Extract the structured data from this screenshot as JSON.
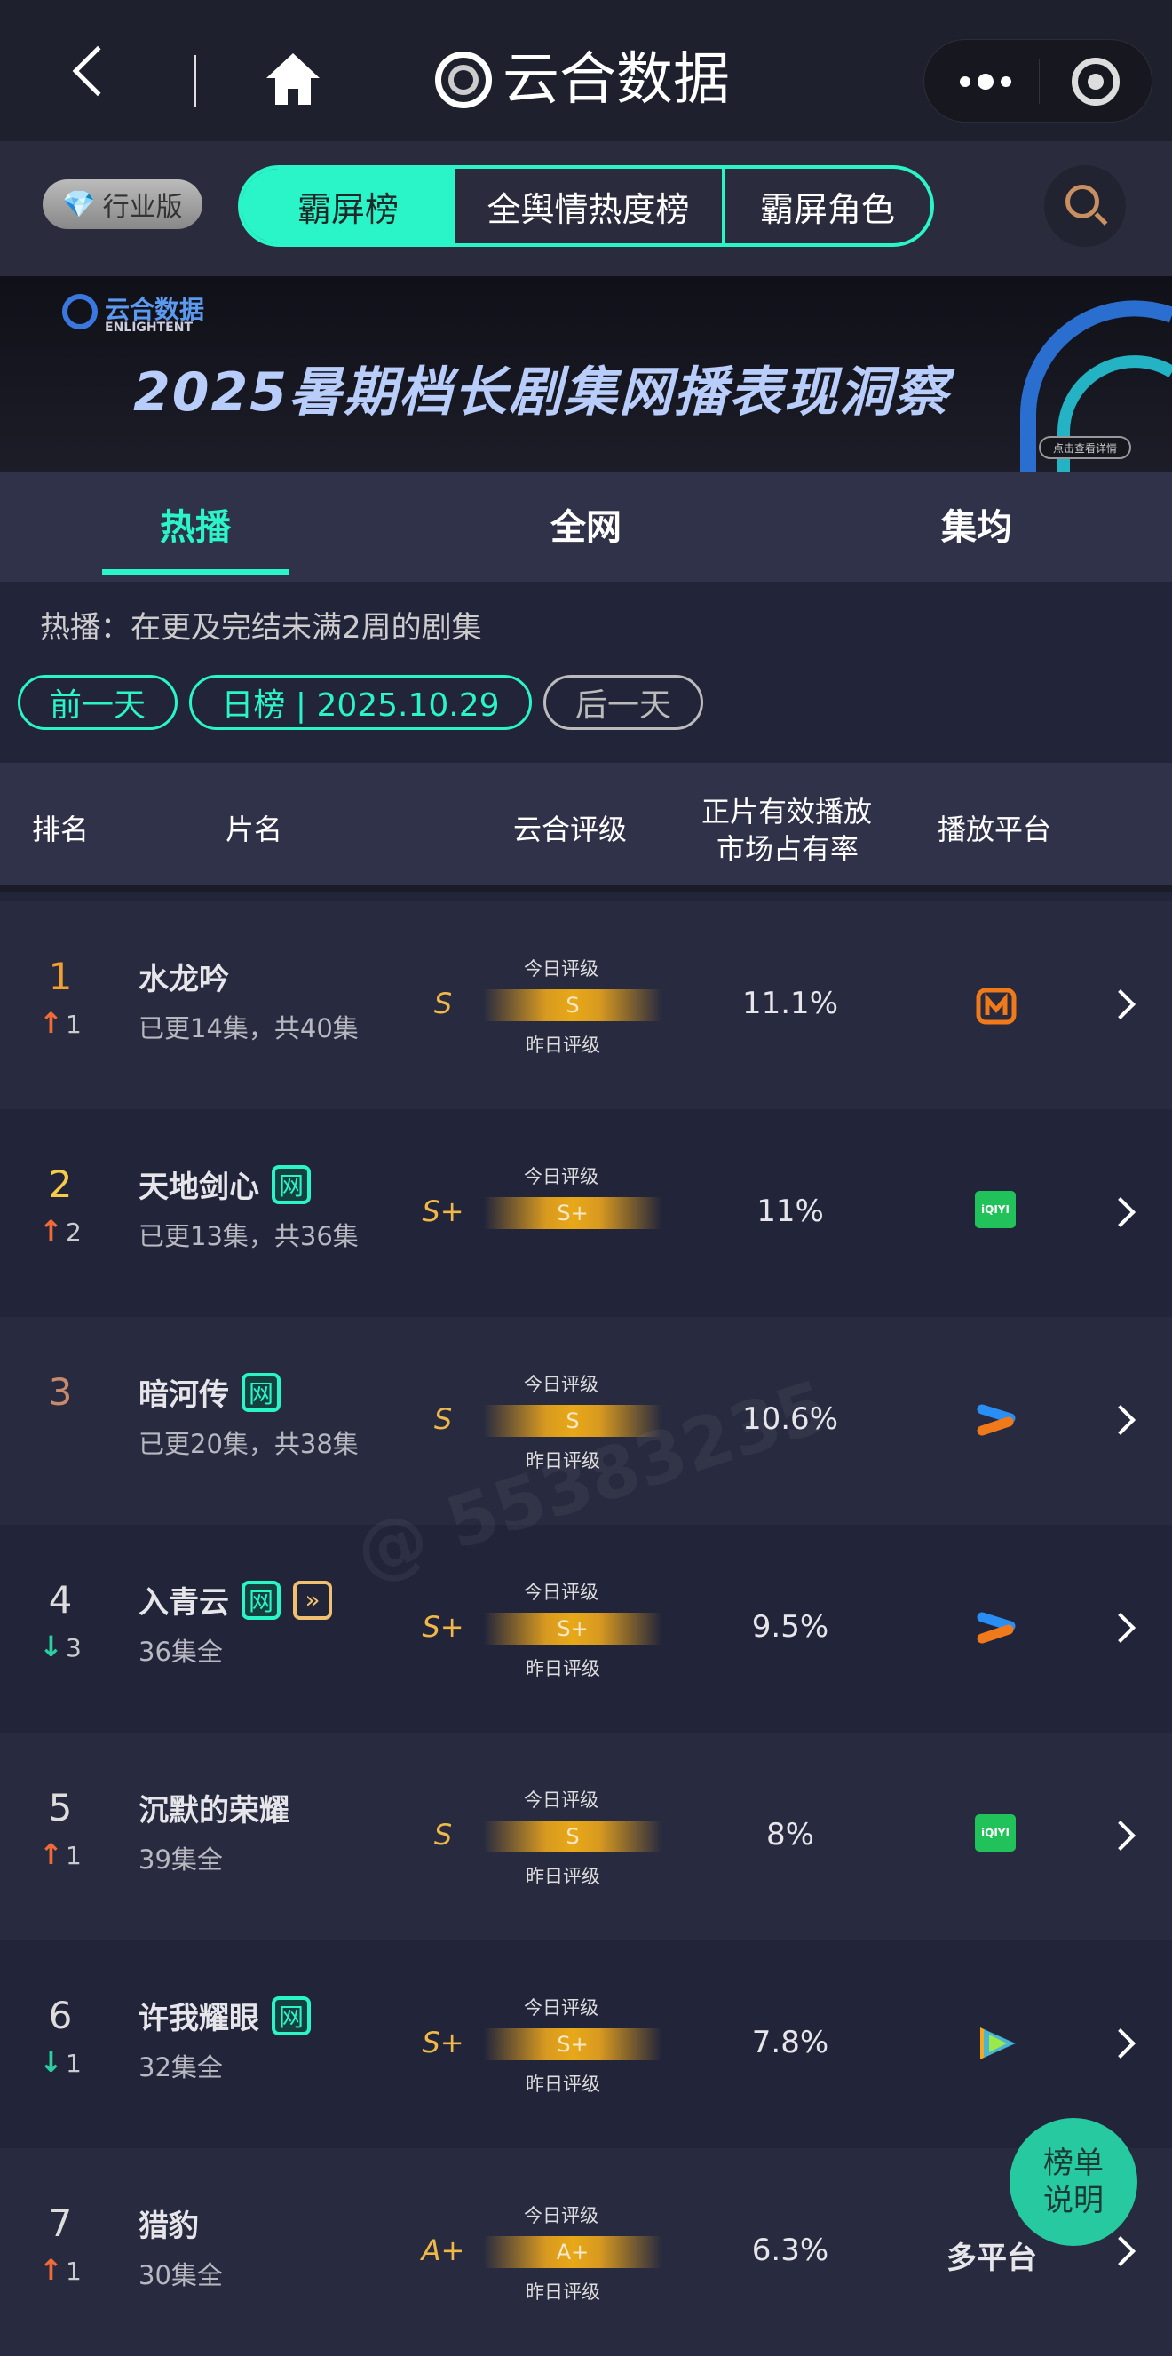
{
  "nav": {
    "brand": "云合数据",
    "back_icon": "chevron-left-icon",
    "home_icon": "home-icon",
    "more_icon": "more-dots-icon",
    "target_icon": "record-icon"
  },
  "tabbar": {
    "edition": "行业版",
    "tabs": [
      "霸屏榜",
      "全舆情热度榜",
      "霸屏角色"
    ],
    "active_tab": 0,
    "accent": "#2af5c8"
  },
  "banner": {
    "logo_cn": "云合数据",
    "logo_en": "ENLIGHTENT",
    "title": "2025暑期档长剧集网播表现洞察",
    "cta": "点击查看详情"
  },
  "subtabs": {
    "items": [
      "热播",
      "全网",
      "集均"
    ],
    "active": 0
  },
  "info": {
    "desc": "热播：在更及完结未满2周的剧集",
    "prev": "前一天",
    "current": "日榜 | 2025.10.29",
    "next": "后一天"
  },
  "header": {
    "rank": "排名",
    "name": "片名",
    "rating": "云合评级",
    "share_line1": "正片有效播放",
    "share_line2": "市场占有率",
    "platform": "播放平台"
  },
  "rating_labels": {
    "today": "今日评级",
    "yesterday": "昨日评级"
  },
  "rows": [
    {
      "rank": "1",
      "change_dir": "up",
      "change": "1",
      "title": "水龙吟",
      "badges": [],
      "sub": "已更14集，共40集",
      "rating": "S",
      "today": "S",
      "show_yesterday": true,
      "share": "11.1%",
      "platform": "mgtv"
    },
    {
      "rank": "2",
      "change_dir": "up",
      "change": "2",
      "title": "天地剑心",
      "badges": [
        "网"
      ],
      "sub": "已更13集，共36集",
      "rating": "S+",
      "today": "S+",
      "show_yesterday": false,
      "share": "11%",
      "platform": "iqiyi"
    },
    {
      "rank": "3",
      "change_dir": "",
      "change": "",
      "title": "暗河传",
      "badges": [
        "网"
      ],
      "sub": "已更20集，共38集",
      "rating": "S",
      "today": "S",
      "show_yesterday": true,
      "share": "10.6%",
      "platform": "youku"
    },
    {
      "rank": "4",
      "change_dir": "down",
      "change": "3",
      "title": "入青云",
      "badges": [
        "网",
        "»"
      ],
      "sub": "36集全",
      "rating": "S+",
      "today": "S+",
      "show_yesterday": true,
      "share": "9.5%",
      "platform": "youku"
    },
    {
      "rank": "5",
      "change_dir": "up",
      "change": "1",
      "title": "沉默的荣耀",
      "badges": [],
      "sub": "39集全",
      "rating": "S",
      "today": "S",
      "show_yesterday": true,
      "share": "8%",
      "platform": "iqiyi"
    },
    {
      "rank": "6",
      "change_dir": "down",
      "change": "1",
      "title": "许我耀眼",
      "badges": [
        "网"
      ],
      "sub": "32集全",
      "rating": "S+",
      "today": "S+",
      "show_yesterday": true,
      "share": "7.8%",
      "platform": "tencent"
    },
    {
      "rank": "7",
      "change_dir": "up",
      "change": "1",
      "title": "猎豹",
      "badges": [],
      "sub": "30集全",
      "rating": "A+",
      "today": "A+",
      "show_yesterday": true,
      "share": "6.3%",
      "platform_text": "多平台"
    }
  ],
  "float_button": {
    "line1": "榜单",
    "line2": "说明"
  },
  "watermark": "@ 55383235"
}
